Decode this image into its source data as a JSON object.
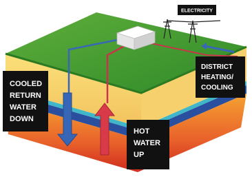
{
  "sign": {
    "label": "ELECTRICITY"
  },
  "labels": [
    {
      "lines": [
        "COOLED",
        "RETURN",
        "WATER",
        "DOWN"
      ]
    },
    {
      "lines": [
        "HOT",
        "WATER",
        "UP"
      ]
    },
    {
      "lines": [
        "DISTRICT",
        "HEATING/",
        "COOLING"
      ]
    }
  ]
}
